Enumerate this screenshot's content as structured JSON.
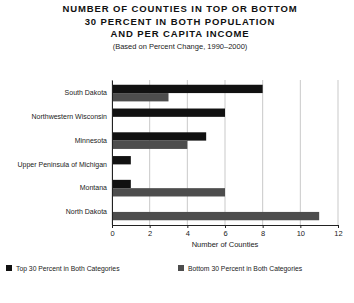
{
  "chart_data": {
    "type": "bar",
    "orientation": "horizontal",
    "title": "NUMBER OF COUNTIES IN TOP OR BOTTOM\n30 PERCENT IN BOTH POPULATION\nAND PER CAPITA INCOME",
    "subtitle": "(Based on Percent Change, 1990–2000)",
    "xlabel": "Number of Counties",
    "categories": [
      "South Dakota",
      "Northwestern Wisconsin",
      "Minnesota",
      "Upper Peninsula of Michigan",
      "Montana",
      "North Dakota"
    ],
    "series": [
      {
        "name": "Top 30 Percent in Both Categories",
        "color": "#111111",
        "values": [
          8,
          6,
          5,
          1,
          1,
          0
        ]
      },
      {
        "name": "Bottom 30 Percent in Both Categories",
        "color": "#4d4d4d",
        "values": [
          3,
          0,
          4,
          0,
          6,
          11
        ]
      }
    ],
    "xlim": [
      0,
      12
    ],
    "xticks": [
      0,
      2,
      4,
      6,
      8,
      10,
      12
    ],
    "grid": true,
    "legend": "bottom"
  }
}
